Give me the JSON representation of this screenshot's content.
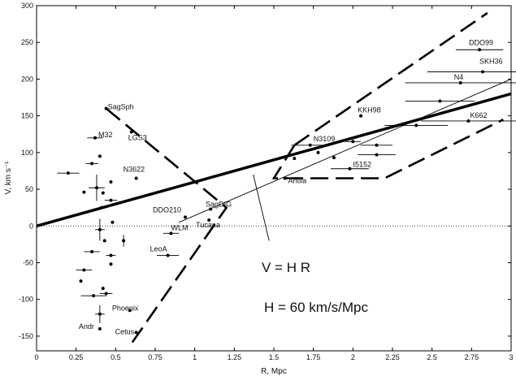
{
  "chart_data": {
    "type": "scatter",
    "title": "",
    "xlabel": "R, Mpc",
    "ylabel": "V, km s⁻¹",
    "xlim": [
      0,
      3
    ],
    "ylim": [
      -170,
      300
    ],
    "xticks": [
      0,
      0.25,
      0.5,
      0.75,
      1,
      1.25,
      1.5,
      1.75,
      2,
      2.25,
      2.5,
      2.75,
      3
    ],
    "xtick_labels": [
      "0",
      "0.25",
      "0.5",
      "0.75",
      "1",
      "1.25",
      "1.5",
      "1.75",
      "2",
      "2.25",
      "2.5",
      "2.75",
      "3"
    ],
    "yticks": [
      -150,
      -100,
      -50,
      0,
      50,
      100,
      150,
      200,
      250,
      300
    ],
    "ytick_labels": [
      "-150",
      "-100",
      "-50",
      "0",
      "50",
      "100",
      "150",
      "200",
      "250",
      "300"
    ],
    "grid": false,
    "zero_line": "dotted",
    "annotations": [
      "V = H R",
      "H = 60 km/s/Mpc"
    ],
    "labeled_points": [
      {
        "label": "DDO99",
        "x": 2.8,
        "y": 240,
        "xerr": 0.15
      },
      {
        "label": "SKH36",
        "x": 2.82,
        "y": 210,
        "xerr": 0.35
      },
      {
        "label": "N4",
        "x": 2.68,
        "y": 195,
        "xerr": 0.35
      },
      {
        "label": "KKH98",
        "x": 2.05,
        "y": 150
      },
      {
        "label": "K662",
        "x": 2.73,
        "y": 143,
        "xerr": 0.3
      },
      {
        "label": "N3109",
        "x": 1.73,
        "y": 110,
        "xerr": 0.12
      },
      {
        "label": "I5152",
        "x": 1.98,
        "y": 78,
        "xerr": 0.12
      },
      {
        "label": "Antlia",
        "x": 1.57,
        "y": 65
      },
      {
        "label": "SagSph",
        "x": 0.44,
        "y": 160
      },
      {
        "label": "M32",
        "x": 0.37,
        "y": 120,
        "xerr": 0.05
      },
      {
        "label": "LGS3",
        "x": 0.6,
        "y": 128
      },
      {
        "label": "N3622",
        "x": 0.63,
        "y": 65
      },
      {
        "label": "DDO210",
        "x": 0.94,
        "y": 12
      },
      {
        "label": "SagDIG",
        "x": 1.1,
        "y": 23
      },
      {
        "label": "Tucana",
        "x": 1.09,
        "y": 8
      },
      {
        "label": "WLM",
        "x": 0.85,
        "y": -10,
        "xerr": 0.05
      },
      {
        "label": "LeoA",
        "x": 0.83,
        "y": -40,
        "xerr": 0.07
      },
      {
        "label": "Phoenix",
        "x": 0.59,
        "y": -115
      },
      {
        "label": "Andr",
        "x": 0.4,
        "y": -140
      },
      {
        "label": "Cetus",
        "x": 0.63,
        "y": -145
      }
    ],
    "other_points": [
      {
        "x": 0.2,
        "y": 72,
        "xerr": 0.07
      },
      {
        "x": 0.35,
        "y": 85,
        "xerr": 0.04
      },
      {
        "x": 0.4,
        "y": 95
      },
      {
        "x": 0.38,
        "y": 52,
        "xerr": 0.05,
        "yerr": 18
      },
      {
        "x": 0.47,
        "y": 60
      },
      {
        "x": 0.42,
        "y": 45
      },
      {
        "x": 0.3,
        "y": 46
      },
      {
        "x": 0.47,
        "y": 35,
        "xerr": 0.04
      },
      {
        "x": 0.41,
        "y": 25
      },
      {
        "x": 0.48,
        "y": 5
      },
      {
        "x": 0.4,
        "y": -5,
        "xerr": 0.03,
        "yerr": 15
      },
      {
        "x": 0.43,
        "y": -20
      },
      {
        "x": 0.55,
        "y": -20,
        "yerr": 8
      },
      {
        "x": 0.35,
        "y": -35,
        "xerr": 0.05
      },
      {
        "x": 0.47,
        "y": -40,
        "xerr": 0.03
      },
      {
        "x": 0.47,
        "y": -52
      },
      {
        "x": 0.3,
        "y": -60,
        "xerr": 0.05
      },
      {
        "x": 0.28,
        "y": -75
      },
      {
        "x": 0.36,
        "y": -95,
        "xerr": 0.08
      },
      {
        "x": 0.44,
        "y": -92,
        "xerr": 0.04
      },
      {
        "x": 0.42,
        "y": -85
      },
      {
        "x": 0.4,
        "y": -120,
        "xerr": 0.03,
        "yerr": 12
      },
      {
        "x": 1.78,
        "y": 100
      },
      {
        "x": 1.63,
        "y": 92
      },
      {
        "x": 1.88,
        "y": 93
      },
      {
        "x": 2.0,
        "y": 115,
        "xerr": 0.05
      },
      {
        "x": 2.15,
        "y": 110,
        "xerr": 0.1
      },
      {
        "x": 2.15,
        "y": 97,
        "xerr": 0.12
      },
      {
        "x": 2.4,
        "y": 137,
        "xerr": 0.2
      },
      {
        "x": 2.55,
        "y": 170,
        "xerr": 0.22
      }
    ],
    "lines": [
      {
        "style": "thick-solid",
        "slope": 60,
        "intercept": 0
      },
      {
        "style": "thin-solid",
        "points": [
          [
            0.9,
            5
          ],
          [
            3.0,
            200
          ]
        ]
      },
      {
        "style": "dashed",
        "points": [
          [
            0.44,
            160
          ],
          [
            1.2,
            25
          ],
          [
            0.6,
            -160
          ]
        ]
      },
      {
        "style": "dashed",
        "points": [
          [
            1.63,
            110
          ],
          [
            2.85,
            290
          ]
        ]
      },
      {
        "style": "dashed",
        "points": [
          [
            1.63,
            110
          ],
          [
            1.5,
            65
          ],
          [
            2.2,
            65
          ],
          [
            2.95,
            145
          ]
        ]
      },
      {
        "style": "thin-solid",
        "points": [
          [
            1.37,
            70
          ],
          [
            1.47,
            -20
          ]
        ]
      }
    ]
  }
}
